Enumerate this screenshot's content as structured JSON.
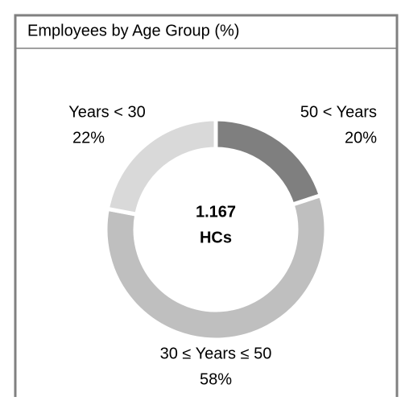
{
  "chart_data": {
    "type": "donut",
    "title": "Employees by Age Group (%)",
    "categories": [
      "50 < Years",
      "30 ≤ Years ≤ 50",
      "Years < 30"
    ],
    "values": [
      20,
      58,
      22
    ],
    "value_labels": [
      "20%",
      "58%",
      "22%"
    ],
    "colors": [
      "#7f7f7f",
      "#bfbfbf",
      "#d9d9d9"
    ],
    "center_text": [
      "1.167",
      "HCs"
    ]
  }
}
